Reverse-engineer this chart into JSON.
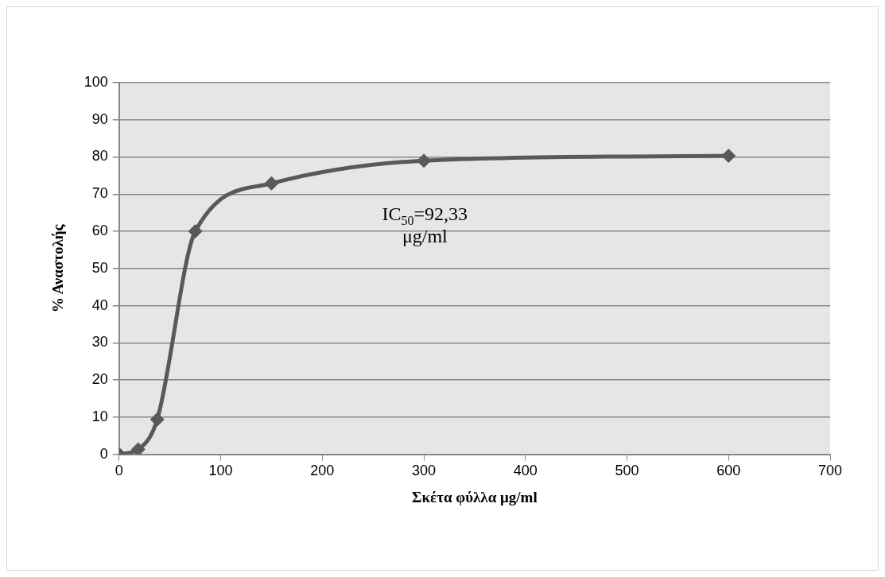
{
  "chart_data": {
    "type": "line",
    "xlabel": "Σκέτα φύλλα μg/ml",
    "ylabel": "% Αναστολής",
    "x": [
      0,
      18.75,
      37.5,
      75,
      150,
      300,
      600
    ],
    "series": [
      {
        "color": "#595959",
        "values": [
          0,
          1.3,
          9.4,
          60,
          72.9,
          79,
          80.3
        ]
      }
    ],
    "xlim": [
      0,
      700
    ],
    "xticks": [
      0,
      100,
      200,
      300,
      400,
      500,
      600,
      700
    ],
    "ylim": [
      0,
      100
    ],
    "yticks": [
      0,
      10,
      20,
      30,
      40,
      50,
      60,
      70,
      80,
      90,
      100
    ],
    "grid": "y",
    "legend": false,
    "marker": "diamond",
    "line_style": "solid",
    "annotations": [
      "IC$_{50}$=92,33 μg/ml"
    ]
  }
}
